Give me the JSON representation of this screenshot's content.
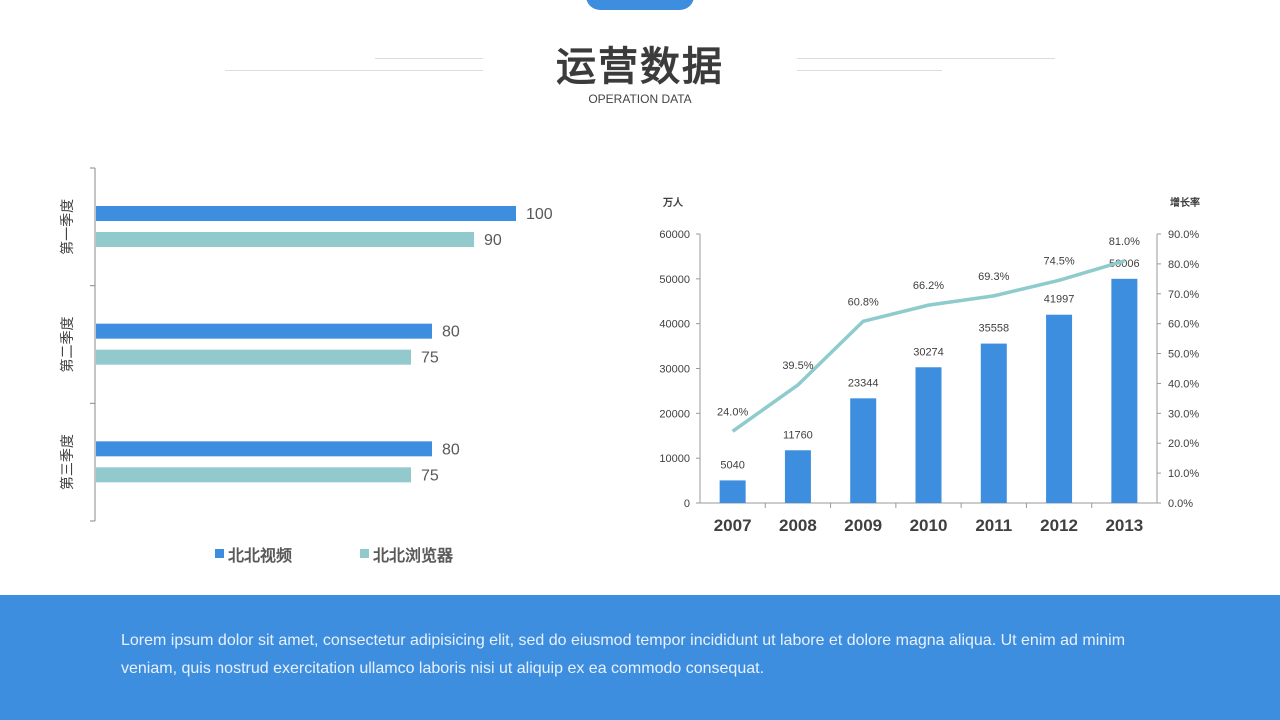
{
  "header": {
    "title": "运营数据",
    "subtitle": "OPERATION DATA"
  },
  "colors": {
    "blue": "#3e8ee0",
    "teal": "#92c9cd",
    "line": "#8ecbcd"
  },
  "chart_data": [
    {
      "type": "bar",
      "orientation": "horizontal",
      "categories": [
        "第一季度",
        "第二季度",
        "第三季度"
      ],
      "category_labels_display": [
        "第一季度",
        "第二季度",
        "第三季度"
      ],
      "series": [
        {
          "name": "北北视频",
          "values": [
            100,
            80,
            80
          ]
        },
        {
          "name": "北北浏览器",
          "values": [
            90,
            75,
            75
          ]
        }
      ],
      "xlim": [
        0,
        110
      ],
      "legend": "bottom",
      "grid": false
    },
    {
      "type": "bar",
      "categories": [
        "2007",
        "2008",
        "2009",
        "2010",
        "2011",
        "2012",
        "2013"
      ],
      "series": [
        {
          "type": "bar",
          "values": [
            5040,
            11760,
            23344,
            30274,
            35558,
            41997,
            50006
          ],
          "axis": "left"
        },
        {
          "type": "line",
          "values": [
            24.0,
            39.5,
            60.8,
            66.2,
            69.3,
            74.5,
            81.0
          ],
          "axis": "right"
        }
      ],
      "data_labels_bar": [
        "5040",
        "11760",
        "23344",
        "30274",
        "35558",
        "41997",
        "50006"
      ],
      "data_labels_line": [
        "24.0%",
        "39.5%",
        "60.8%",
        "66.2%",
        "69.3%",
        "74.5%",
        "81.0%"
      ],
      "ylabel": "万人",
      "y2label": "增长率",
      "ylim": [
        0,
        60000
      ],
      "yticks": [
        "0",
        "10000",
        "20000",
        "30000",
        "40000",
        "50000",
        "60000"
      ],
      "y2lim": [
        0,
        90
      ],
      "y2ticks": [
        "0.0%",
        "10.0%",
        "20.0%",
        "30.0%",
        "40.0%",
        "50.0%",
        "60.0%",
        "70.0%",
        "80.0%",
        "90.0%"
      ],
      "grid": false,
      "legend": "none"
    }
  ],
  "footer": {
    "text": "Lorem ipsum dolor sit amet, consectetur adipisicing elit, sed do eiusmod tempor incididunt ut labore et dolore magna aliqua. Ut enim ad minim veniam, quis nostrud exercitation ullamco laboris nisi ut aliquip ex ea commodo consequat."
  }
}
